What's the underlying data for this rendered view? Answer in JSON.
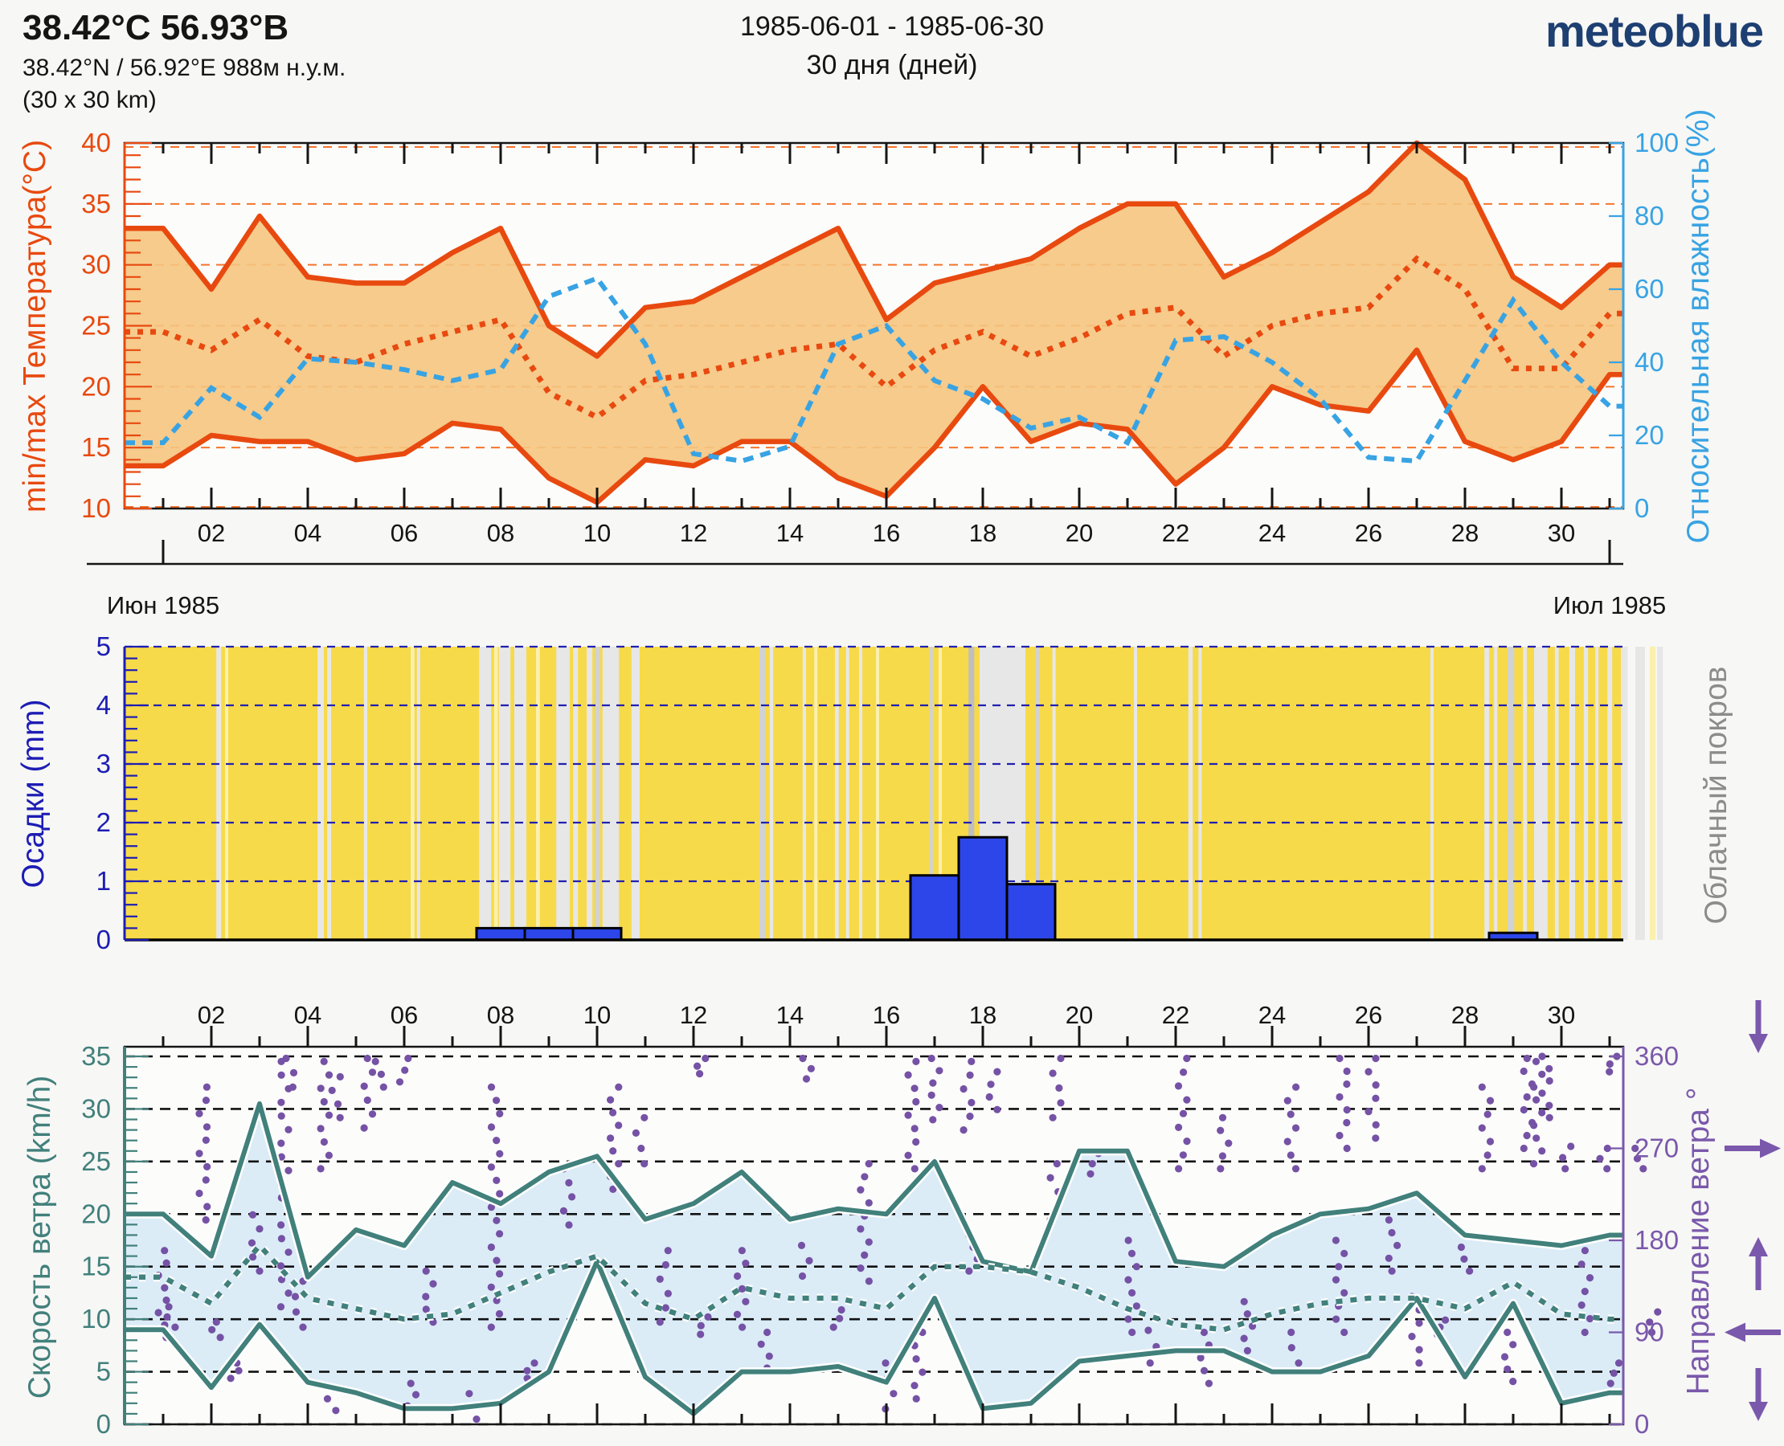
{
  "header": {
    "title": "38.42°С 56.93°В",
    "subtitle": "38.42°N / 56.92°E   988м н.у.м.",
    "area": "(30 x 30 km)",
    "date_range": "1985-06-01 - 1985-06-30",
    "duration": "30 дня (дней)",
    "logo_text": "meteoblue",
    "logo_color": "#1e3f72"
  },
  "timeline": {
    "month_left": "Июн 1985",
    "month_right": "Июл 1985",
    "day_tick_values": [
      2,
      4,
      6,
      8,
      10,
      12,
      14,
      16,
      18,
      20,
      22,
      24,
      26,
      28,
      30
    ],
    "day_tick_labels": [
      "02",
      "04",
      "06",
      "08",
      "10",
      "12",
      "14",
      "16",
      "18",
      "20",
      "22",
      "24",
      "26",
      "28",
      "30"
    ]
  },
  "chart_data": [
    {
      "id": "temperature-humidity",
      "type": "line",
      "x_days": [
        1,
        2,
        3,
        4,
        5,
        6,
        7,
        8,
        9,
        10,
        11,
        12,
        13,
        14,
        15,
        16,
        17,
        18,
        19,
        20,
        21,
        22,
        23,
        24,
        25,
        26,
        27,
        28,
        29,
        30,
        31
      ],
      "left_axis": {
        "title": "min/max Температура(°C)",
        "range": [
          10,
          40
        ],
        "ticks": [
          10,
          15,
          20,
          25,
          30,
          35,
          40
        ],
        "color": "#e8490f"
      },
      "right_axis": {
        "title": "Относительная влажность(%)",
        "range": [
          0,
          100
        ],
        "ticks": [
          0,
          20,
          40,
          60,
          80,
          100
        ],
        "color": "#38a3e3"
      },
      "band_fill": "#f5c57f",
      "grid": {
        "color": "#f4742c",
        "levels": [
          15,
          20,
          25,
          30,
          35
        ]
      },
      "series": [
        {
          "name": "t_max",
          "axis": "left",
          "style": "solid",
          "color": "#e8490f",
          "values": [
            33,
            28,
            34,
            29,
            28.5,
            28.5,
            31,
            33,
            25,
            22.5,
            26.5,
            27,
            29,
            31,
            33,
            25.5,
            28.5,
            29.5,
            30.5,
            33,
            35,
            35,
            29,
            31,
            33.5,
            36,
            40,
            37,
            29,
            26.5,
            30
          ]
        },
        {
          "name": "t_min",
          "axis": "left",
          "style": "solid",
          "color": "#e8490f",
          "values": [
            13.5,
            16,
            15.5,
            15.5,
            14,
            14.5,
            17,
            16.5,
            12.5,
            10.5,
            14,
            13.5,
            15.5,
            15.5,
            12.5,
            11,
            15,
            20,
            15.5,
            17,
            16.5,
            12,
            15,
            20,
            18.5,
            18,
            23,
            15.5,
            14,
            15.5,
            21
          ]
        },
        {
          "name": "t_mean",
          "axis": "left",
          "style": "dotted",
          "color": "#e8490f",
          "values": [
            24.5,
            23,
            25.5,
            22.5,
            22,
            23.5,
            24.5,
            25.5,
            19.5,
            17.5,
            20.5,
            21,
            22,
            23,
            23.5,
            20,
            23,
            24.5,
            22.5,
            24,
            26,
            26.5,
            22.5,
            25,
            26,
            26.5,
            30.5,
            28,
            21.5,
            21.5,
            26
          ]
        },
        {
          "name": "relative_humidity",
          "axis": "right",
          "style": "dashed",
          "color": "#38a3e3",
          "values": [
            18,
            33,
            25,
            41,
            40,
            38,
            35,
            38,
            58,
            63,
            45,
            15,
            13,
            17,
            45,
            50,
            35,
            30,
            22,
            25,
            18,
            46,
            47,
            40,
            30,
            14,
            13,
            35,
            57,
            40,
            28
          ]
        }
      ]
    },
    {
      "id": "precipitation-cloudcover",
      "type": "bar",
      "left_axis": {
        "title": "Осадки (mm)",
        "range": [
          0,
          5
        ],
        "ticks": [
          0,
          1,
          2,
          3,
          4,
          5
        ],
        "color": "#1d1db4"
      },
      "right_axis": {
        "title": "Облачный покров",
        "color": "#8c8c8c"
      },
      "background": "#f7da49",
      "bar_color": "#2d46ea",
      "grid": {
        "color": "#2020b0",
        "levels": [
          0,
          1,
          2,
          3,
          4,
          5
        ]
      },
      "bars": [
        {
          "day": 8,
          "value": 0.2
        },
        {
          "day": 9,
          "value": 0.2
        },
        {
          "day": 10,
          "value": 0.2
        },
        {
          "day": 17,
          "value": 1.1
        },
        {
          "day": 18,
          "value": 1.75
        },
        {
          "day": 19,
          "value": 0.95
        },
        {
          "day": 29,
          "value": 0.12
        }
      ],
      "stripe_colors": {
        "l": "#e7e7e7",
        "m": "#d2d2d2",
        "d": "#bfbfbf",
        "y": "#fbf0ad"
      },
      "cloud_stripes": [
        [
          2.12,
          0.1,
          "l"
        ],
        [
          2.3,
          0.05,
          "y"
        ],
        [
          4.22,
          0.13,
          "l"
        ],
        [
          4.42,
          0.08,
          "l"
        ],
        [
          5.18,
          0.07,
          "l"
        ],
        [
          6.15,
          0.08,
          "y"
        ],
        [
          6.28,
          0.06,
          "l"
        ],
        [
          7.57,
          0.25,
          "l"
        ],
        [
          7.88,
          0.08,
          "y"
        ],
        [
          7.98,
          0.24,
          "l"
        ],
        [
          8.3,
          0.25,
          "l"
        ],
        [
          8.75,
          0.08,
          "y"
        ],
        [
          9.17,
          0.28,
          "l"
        ],
        [
          9.52,
          0.1,
          "l"
        ],
        [
          9.8,
          0.12,
          "l"
        ],
        [
          9.97,
          0.11,
          "m"
        ],
        [
          10.13,
          0.34,
          "l"
        ],
        [
          10.73,
          0.17,
          "l"
        ],
        [
          13.38,
          0.12,
          "m"
        ],
        [
          13.6,
          0.05,
          "l"
        ],
        [
          14.28,
          0.07,
          "l"
        ],
        [
          14.52,
          0.05,
          "y"
        ],
        [
          14.95,
          0.08,
          "l"
        ],
        [
          15.18,
          0.05,
          "l"
        ],
        [
          15.45,
          0.06,
          "l"
        ],
        [
          15.8,
          0.05,
          "y"
        ],
        [
          16.9,
          0.08,
          "m"
        ],
        [
          17.1,
          0.06,
          "y"
        ],
        [
          17.72,
          0.12,
          "d"
        ],
        [
          17.95,
          0.95,
          "l"
        ],
        [
          19.1,
          0.1,
          "m"
        ],
        [
          19.46,
          0.05,
          "l"
        ],
        [
          21.15,
          0.06,
          "l"
        ],
        [
          22.28,
          0.09,
          "l"
        ],
        [
          22.49,
          0.06,
          "l"
        ],
        [
          27.3,
          0.06,
          "l"
        ],
        [
          28.42,
          0.1,
          "l"
        ],
        [
          28.62,
          0.06,
          "l"
        ],
        [
          28.9,
          0.14,
          "m"
        ],
        [
          29.22,
          0.08,
          "l"
        ],
        [
          29.45,
          0.28,
          "l"
        ],
        [
          29.88,
          0.08,
          "l"
        ],
        [
          30.18,
          0.12,
          "l"
        ],
        [
          30.48,
          0.09,
          "l"
        ],
        [
          30.72,
          0.06,
          "l"
        ],
        [
          30.97,
          0.1,
          "l"
        ],
        [
          31.25,
          0.14,
          "l"
        ],
        [
          31.55,
          0.2,
          "l"
        ],
        [
          31.85,
          0.12,
          "y"
        ],
        [
          32.0,
          0.12,
          "l"
        ]
      ]
    },
    {
      "id": "wind",
      "type": "line",
      "left_axis": {
        "title": "Скорость ветра (km/h)",
        "range": [
          0,
          35
        ],
        "ticks": [
          0,
          5,
          10,
          15,
          20,
          25,
          30,
          35
        ],
        "color": "#41807b"
      },
      "right_axis": {
        "title": "Направление ветра °",
        "range": [
          0,
          360
        ],
        "ticks": [
          0,
          90,
          180,
          270,
          360
        ],
        "color": "#7a58ab"
      },
      "band_fill": "#dbecf7",
      "grid": {
        "color": "#111111",
        "levels": [
          0,
          5,
          10,
          15,
          20,
          25,
          30,
          35
        ]
      },
      "series": [
        {
          "name": "wind_max",
          "axis": "left",
          "style": "solid",
          "color": "#41807b",
          "values": [
            20,
            16,
            30.5,
            14,
            18.5,
            17,
            23,
            21,
            24,
            25.5,
            19.5,
            21,
            24,
            19.5,
            20.5,
            20,
            25,
            15.5,
            14.5,
            26,
            26,
            15.5,
            15,
            18,
            20,
            20.5,
            22,
            18,
            17.5,
            17,
            18
          ]
        },
        {
          "name": "wind_mean",
          "axis": "left",
          "style": "dotted",
          "color": "#41807b",
          "values": [
            14,
            11.5,
            17,
            12,
            11,
            10,
            10.5,
            12.5,
            14.5,
            16,
            11.5,
            10,
            13,
            12,
            12,
            11,
            15,
            15,
            14.5,
            13,
            11,
            9.5,
            9,
            10.5,
            11.5,
            12,
            12,
            11,
            13.5,
            10.5,
            10
          ]
        },
        {
          "name": "wind_min",
          "axis": "left",
          "style": "solid",
          "color": "#41807b",
          "values": [
            9,
            3.5,
            9.5,
            4,
            3,
            1.5,
            1.5,
            2,
            5,
            15.5,
            4.5,
            1,
            5,
            5,
            5.5,
            4,
            12,
            1.5,
            2,
            6,
            6.5,
            7,
            7,
            5,
            5,
            6.5,
            12,
            4.5,
            11.5,
            2,
            3
          ]
        }
      ],
      "direction_color": "#7552a5",
      "direction_streaks": [
        [
          1.0,
          85,
          170
        ],
        [
          1.15,
          95,
          115
        ],
        [
          1.85,
          200,
          330
        ],
        [
          2.1,
          85,
          100
        ],
        [
          2.5,
          45,
          60
        ],
        [
          2.9,
          150,
          205
        ],
        [
          3.5,
          115,
          355
        ],
        [
          3.65,
          330,
          358
        ],
        [
          3.8,
          95,
          140
        ],
        [
          4.35,
          250,
          355
        ],
        [
          4.5,
          2,
          25
        ],
        [
          4.6,
          300,
          340
        ],
        [
          5.25,
          290,
          358
        ],
        [
          5.5,
          330,
          355
        ],
        [
          6.0,
          335,
          358
        ],
        [
          6.15,
          18,
          40
        ],
        [
          6.5,
          100,
          150
        ],
        [
          7.4,
          5,
          30
        ],
        [
          7.9,
          95,
          330
        ],
        [
          8.6,
          45,
          60
        ],
        [
          9.4,
          195,
          250
        ],
        [
          10.35,
          230,
          330
        ],
        [
          10.9,
          255,
          300
        ],
        [
          11.4,
          100,
          170
        ],
        [
          12.15,
          343,
          358
        ],
        [
          12.2,
          88,
          105
        ],
        [
          13.0,
          95,
          170
        ],
        [
          13.5,
          55,
          90
        ],
        [
          14.3,
          145,
          175
        ],
        [
          14.35,
          338,
          358
        ],
        [
          15.0,
          95,
          112
        ],
        [
          15.55,
          140,
          255
        ],
        [
          16.05,
          15,
          60
        ],
        [
          16.55,
          250,
          355
        ],
        [
          16.65,
          25,
          90
        ],
        [
          17.0,
          298,
          358
        ],
        [
          17.7,
          288,
          355
        ],
        [
          17.8,
          150,
          185
        ],
        [
          18.2,
          308,
          345
        ],
        [
          19.5,
          200,
          255
        ],
        [
          19.55,
          300,
          358
        ],
        [
          20.3,
          245,
          265
        ],
        [
          21.1,
          90,
          180
        ],
        [
          21.5,
          60,
          92
        ],
        [
          22.15,
          250,
          358
        ],
        [
          22.6,
          40,
          90
        ],
        [
          23.0,
          250,
          300
        ],
        [
          23.5,
          60,
          120
        ],
        [
          24.4,
          250,
          330
        ],
        [
          24.45,
          60,
          90
        ],
        [
          25.4,
          90,
          180
        ],
        [
          25.5,
          270,
          358
        ],
        [
          26.1,
          280,
          358
        ],
        [
          26.5,
          150,
          200
        ],
        [
          27.0,
          60,
          125
        ],
        [
          27.5,
          88,
          102
        ],
        [
          28.0,
          150,
          185
        ],
        [
          28.45,
          250,
          330
        ],
        [
          28.9,
          42,
          90
        ],
        [
          29.3,
          270,
          358
        ],
        [
          29.5,
          255,
          355
        ],
        [
          29.7,
          300,
          360
        ],
        [
          30.1,
          250,
          272
        ],
        [
          30.5,
          90,
          170
        ],
        [
          30.9,
          250,
          270
        ],
        [
          31.05,
          345,
          360
        ],
        [
          31.1,
          40,
          60
        ],
        [
          31.6,
          250,
          270
        ],
        [
          31.9,
          90,
          110
        ]
      ],
      "arrows": [
        {
          "deg": 360,
          "dir": "down"
        },
        {
          "deg": 270,
          "dir": "right"
        },
        {
          "deg": 180,
          "dir": "up"
        },
        {
          "deg": 90,
          "dir": "left"
        },
        {
          "deg": 0,
          "dir": "down"
        }
      ]
    }
  ]
}
